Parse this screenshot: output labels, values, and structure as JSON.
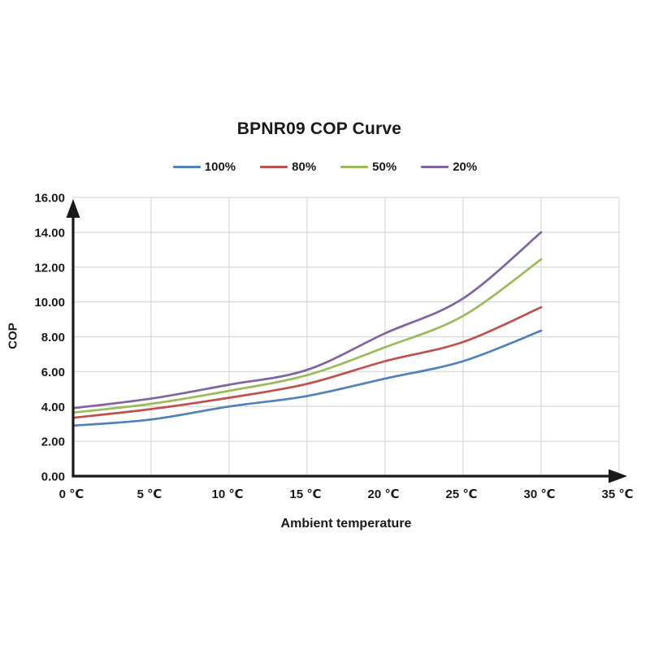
{
  "page": {
    "background": "#ffffff"
  },
  "chart_data": {
    "type": "line",
    "title": "BPNR09 COP Curve",
    "xlabel": "Ambient temperature",
    "ylabel": "COP",
    "xlim": [
      0,
      35
    ],
    "ylim": [
      0,
      16
    ],
    "grid": true,
    "legend_position": "top-center",
    "axis_color": "#1a1a1a",
    "grid_color": "#d9d9d9",
    "x": [
      0,
      5,
      10,
      15,
      20,
      25,
      30
    ],
    "x_tick_values": [
      0,
      5,
      10,
      15,
      20,
      25,
      30,
      35
    ],
    "x_tick_labels": [
      "0 ℃",
      "5 ℃",
      "10 ℃",
      "15 ℃",
      "20 ℃",
      "25 ℃",
      "30 ℃",
      "35 ℃"
    ],
    "y_tick_values": [
      0,
      2,
      4,
      6,
      8,
      10,
      12,
      14,
      16
    ],
    "y_tick_labels": [
      "0.00",
      "2.00",
      "4.00",
      "6.00",
      "8.00",
      "10.00",
      "12.00",
      "14.00",
      "16.00"
    ],
    "series": [
      {
        "name": "100%",
        "color": "#4F81BD",
        "values": [
          2.9,
          3.25,
          4.0,
          4.6,
          5.6,
          6.6,
          8.35
        ]
      },
      {
        "name": "80%",
        "color": "#C0504D",
        "values": [
          3.35,
          3.85,
          4.5,
          5.3,
          6.6,
          7.7,
          9.7
        ]
      },
      {
        "name": "50%",
        "color": "#9BBB59",
        "values": [
          3.65,
          4.15,
          4.9,
          5.8,
          7.4,
          9.2,
          12.45
        ]
      },
      {
        "name": "20%",
        "color": "#8064A2",
        "values": [
          3.9,
          4.45,
          5.25,
          6.1,
          8.2,
          10.2,
          14.0
        ]
      }
    ]
  }
}
